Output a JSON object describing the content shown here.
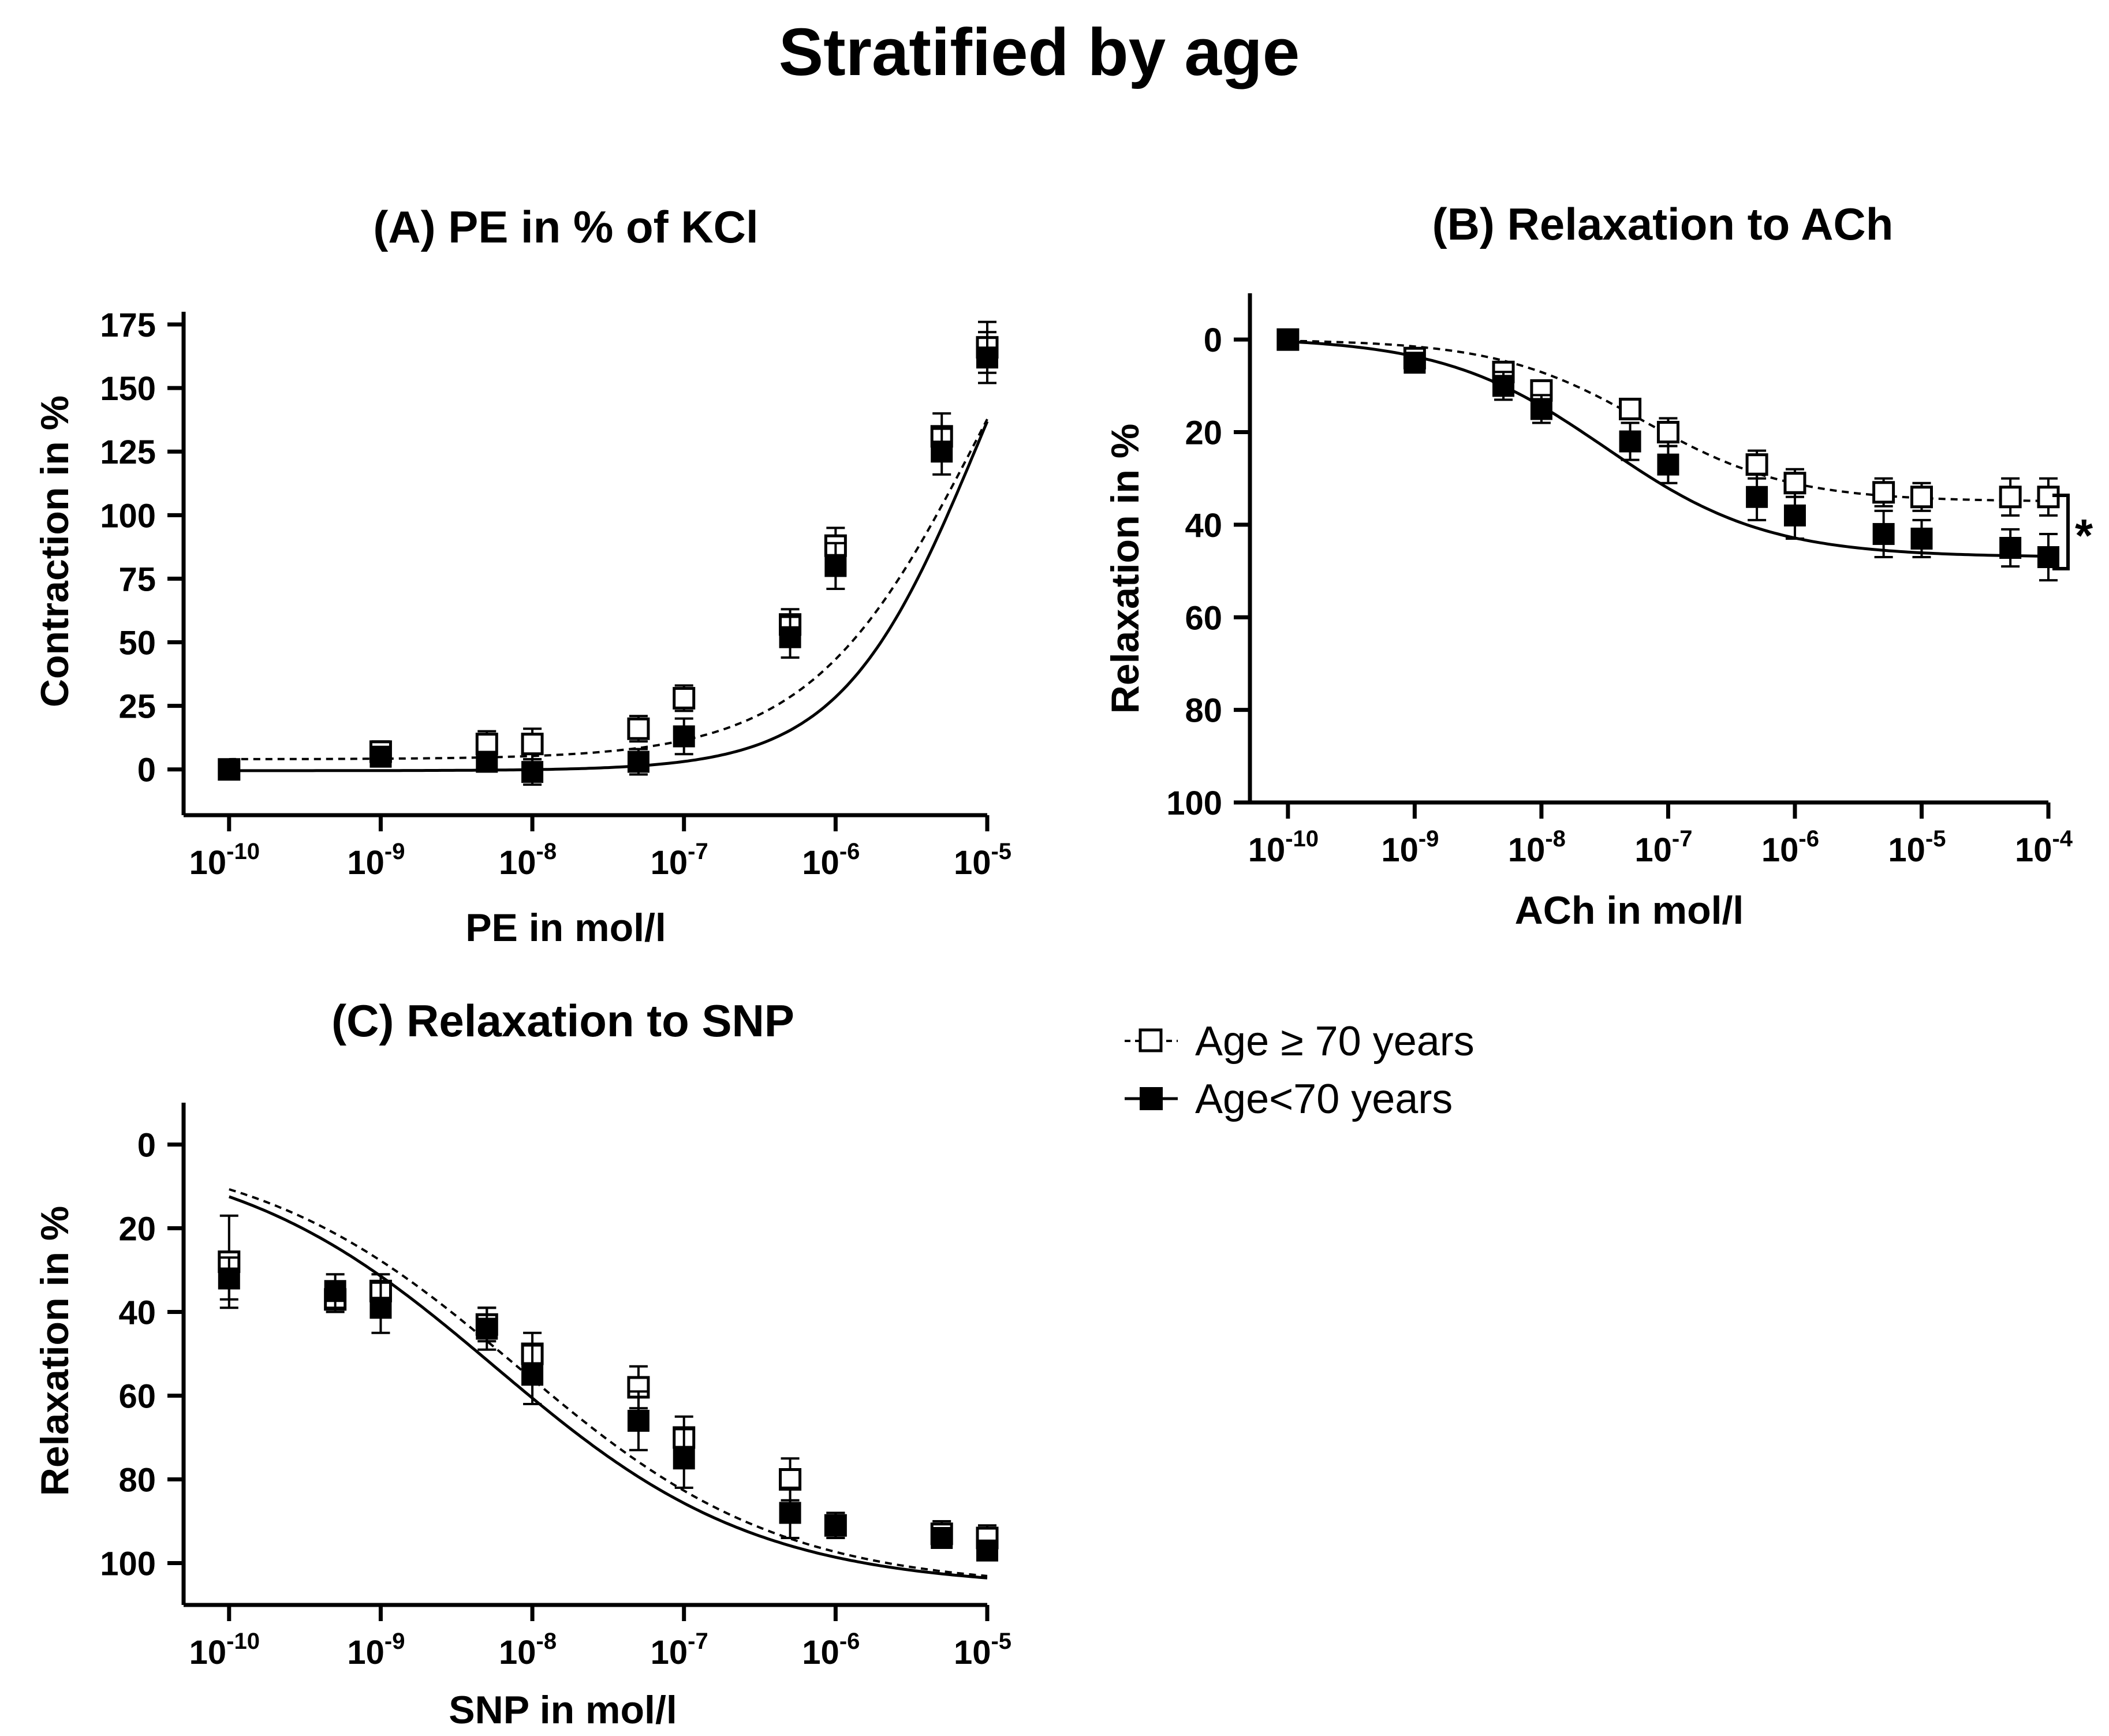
{
  "figure_title": "Stratified by age",
  "legend": {
    "items": [
      {
        "label": "Age ≥ 70 years",
        "marker": "open-square",
        "line": "dashed"
      },
      {
        "label": "Age<70 years",
        "marker": "filled-square",
        "line": "solid"
      }
    ]
  },
  "colors": {
    "ink": "#000000",
    "background": "#ffffff",
    "open_fill": "#ffffff"
  },
  "chart_data": [
    {
      "id": "A",
      "type": "line",
      "title": "(A) PE in % of KCl",
      "xlabel": "PE in mol/l",
      "ylabel": "Contraction in %",
      "xscale": "log10",
      "xlim": [
        -10.3,
        -5
      ],
      "ylim": [
        -18,
        180
      ],
      "yinverted": false,
      "xticks": [
        -10,
        -9,
        -8,
        -7,
        -6,
        -5
      ],
      "xtick_labels": [
        {
          "base": "10",
          "exp": "-10"
        },
        {
          "base": "10",
          "exp": "-9"
        },
        {
          "base": "10",
          "exp": "-8"
        },
        {
          "base": "10",
          "exp": "-7"
        },
        {
          "base": "10",
          "exp": "-6"
        },
        {
          "base": "10",
          "exp": "-5"
        }
      ],
      "yticks": [
        0,
        25,
        50,
        75,
        100,
        125,
        150,
        175
      ],
      "ytick_labels": [
        "0",
        "25",
        "50",
        "75",
        "100",
        "125",
        "150",
        "175"
      ],
      "series": [
        {
          "name": "Age ≥ 70 years",
          "marker": "open",
          "line": "dashed",
          "log_x": [
            -10,
            -9,
            -8.3,
            -8,
            -7.3,
            -7,
            -6.3,
            -6,
            -5.3,
            -5
          ],
          "y": [
            0,
            7,
            10,
            10,
            16,
            28,
            57,
            88,
            131,
            166
          ],
          "err": [
            2,
            4,
            5,
            6,
            5,
            5,
            6,
            7,
            9,
            10
          ],
          "fit": {
            "bottom": 4,
            "top": 260,
            "logEC50": -5.05,
            "hill": 0.78
          }
        },
        {
          "name": "Age<70 years",
          "marker": "filled",
          "line": "solid",
          "log_x": [
            -10,
            -9,
            -8.3,
            -8,
            -7.3,
            -7,
            -6.3,
            -6,
            -5.3,
            -5
          ],
          "y": [
            0,
            5,
            3,
            -1,
            3,
            13,
            52,
            80,
            125,
            162
          ],
          "err": [
            2,
            3,
            3,
            5,
            5,
            7,
            8,
            9,
            9,
            10
          ],
          "fit": {
            "bottom": -0.5,
            "top": 260,
            "logEC50": -5.05,
            "hill": 0.95
          }
        }
      ]
    },
    {
      "id": "B",
      "type": "line",
      "title": "(B) Relaxation to ACh",
      "xlabel": "ACh in mol/l",
      "ylabel": "Relaxation in %",
      "xscale": "log10",
      "xlim": [
        -10.3,
        -4
      ],
      "ylim": [
        100,
        -10
      ],
      "yinverted": true,
      "xticks": [
        -10,
        -9,
        -8,
        -7,
        -6,
        -5,
        -4
      ],
      "xtick_labels": [
        {
          "base": "10",
          "exp": "-10"
        },
        {
          "base": "10",
          "exp": "-9"
        },
        {
          "base": "10",
          "exp": "-8"
        },
        {
          "base": "10",
          "exp": "-7"
        },
        {
          "base": "10",
          "exp": "-6"
        },
        {
          "base": "10",
          "exp": "-5"
        },
        {
          "base": "10",
          "exp": "-4"
        }
      ],
      "yticks": [
        0,
        20,
        40,
        60,
        80,
        100
      ],
      "ytick_labels": [
        "0",
        "20",
        "40",
        "60",
        "80",
        "100"
      ],
      "significance": {
        "label": "*",
        "between": [
          34,
          47
        ]
      },
      "series": [
        {
          "name": "Age ≥ 70 years",
          "marker": "open",
          "line": "dashed",
          "log_x": [
            -10,
            -9,
            -8.3,
            -8,
            -7.3,
            -7,
            -6.3,
            -6,
            -5.3,
            -5,
            -4.3,
            -4
          ],
          "y": [
            0,
            4,
            7,
            11,
            15,
            20,
            27,
            31,
            33,
            34,
            34,
            34
          ],
          "err": [
            1,
            1,
            2,
            2,
            2,
            3,
            3,
            3,
            3,
            3,
            4,
            4
          ],
          "fit": {
            "bottom": 0,
            "top": 35,
            "logEC50": -7.2,
            "hill": 0.75
          }
        },
        {
          "name": "Age<70 years",
          "marker": "filled",
          "line": "solid",
          "log_x": [
            -10,
            -9,
            -8.3,
            -8,
            -7.3,
            -7,
            -6.3,
            -6,
            -5.3,
            -5,
            -4.3,
            -4
          ],
          "y": [
            0,
            5,
            10,
            15,
            22,
            27,
            34,
            38,
            42,
            43,
            45,
            47
          ],
          "err": [
            1,
            1,
            3,
            3,
            4,
            4,
            5,
            5,
            5,
            4,
            4,
            5
          ],
          "fit": {
            "bottom": -0.5,
            "top": 47,
            "logEC50": -7.5,
            "hill": 0.68
          }
        }
      ]
    },
    {
      "id": "C",
      "type": "line",
      "title": "(C) Relaxation to SNP",
      "xlabel": "SNP in mol/l",
      "ylabel": "Relaxation in %",
      "xscale": "log10",
      "xlim": [
        -10.3,
        -5
      ],
      "ylim": [
        110,
        -10
      ],
      "yinverted": true,
      "xticks": [
        -10,
        -9,
        -8,
        -7,
        -6,
        -5
      ],
      "xtick_labels": [
        {
          "base": "10",
          "exp": "-10"
        },
        {
          "base": "10",
          "exp": "-9"
        },
        {
          "base": "10",
          "exp": "-8"
        },
        {
          "base": "10",
          "exp": "-7"
        },
        {
          "base": "10",
          "exp": "-6"
        },
        {
          "base": "10",
          "exp": "-5"
        }
      ],
      "yticks": [
        0,
        20,
        40,
        60,
        80,
        100
      ],
      "ytick_labels": [
        "0",
        "20",
        "40",
        "60",
        "80",
        "100"
      ],
      "series": [
        {
          "name": "Age ≥ 70 years",
          "marker": "open",
          "line": "dashed",
          "log_x": [
            -10,
            -9.3,
            -9,
            -8.3,
            -8,
            -7.3,
            -7,
            -6.3,
            -6,
            -5.3,
            -5
          ],
          "y": [
            28,
            37,
            35,
            43,
            50,
            58,
            70,
            80,
            91,
            93,
            94
          ],
          "err": [
            11,
            3,
            4,
            4,
            5,
            5,
            5,
            5,
            3,
            3,
            3
          ],
          "fit": {
            "bottom": 0,
            "top": 106,
            "logEC50": -8.1,
            "hill": 0.5
          }
        },
        {
          "name": "Age<70 years",
          "marker": "filled",
          "line": "solid",
          "log_x": [
            -10,
            -9.3,
            -9,
            -8.3,
            -8,
            -7.3,
            -7,
            -6.3,
            -6,
            -5.3,
            -5
          ],
          "y": [
            32,
            35,
            39,
            44,
            55,
            66,
            75,
            88,
            91,
            94,
            97
          ],
          "err": [
            5,
            4,
            6,
            5,
            7,
            7,
            7,
            6,
            3,
            2,
            2
          ],
          "fit": {
            "bottom": 0,
            "top": 106,
            "logEC50": -8.25,
            "hill": 0.5
          }
        }
      ]
    }
  ]
}
